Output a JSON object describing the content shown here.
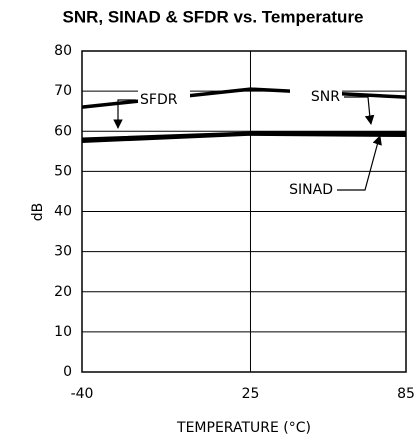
{
  "chart_data": {
    "type": "line",
    "title": "SNR, SINAD & SFDR vs. Temperature",
    "x_label": "TEMPERATURE (°C)",
    "y_label": "dB",
    "x": [
      -40,
      25,
      85
    ],
    "series": [
      {
        "name": "SFDR",
        "color": "#000000",
        "values": [
          66,
          70.5,
          68.5
        ]
      },
      {
        "name": "SNR",
        "color": "#000000",
        "values": [
          58,
          59.5,
          59.5
        ]
      },
      {
        "name": "SINAD",
        "color": "#000000",
        "values": [
          57.5,
          59.3,
          59
        ]
      }
    ],
    "xlim": [
      -40,
      85
    ],
    "xticks": [
      -40,
      25,
      85
    ],
    "ylim": [
      0,
      80
    ],
    "yticks": [
      0,
      10,
      20,
      30,
      40,
      50,
      60,
      70,
      80
    ],
    "grid": true
  }
}
